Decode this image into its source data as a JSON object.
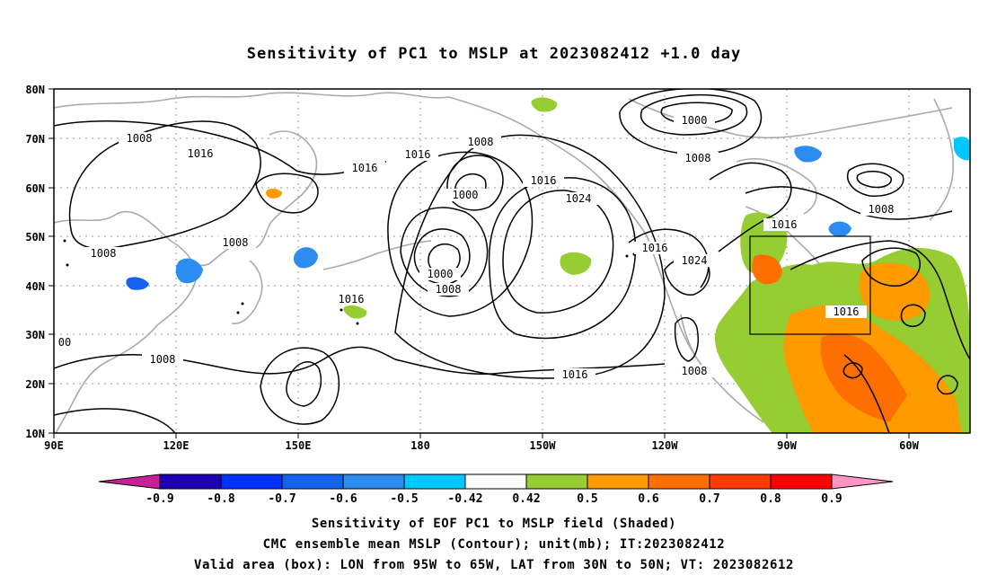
{
  "title": "Sensitivity of PC1 to MSLP at 2023082412 +1.0 day",
  "axes": {
    "lat_labels": [
      "80N",
      "70N",
      "60N",
      "50N",
      "40N",
      "30N",
      "20N",
      "10N"
    ],
    "lon_labels": [
      "90E",
      "120E",
      "150E",
      "180",
      "150W",
      "120W",
      "90W",
      "60W"
    ]
  },
  "colorbar": {
    "ticks": [
      "-0.9",
      "-0.8",
      "-0.7",
      "-0.6",
      "-0.5",
      "-0.42",
      "0.42",
      "0.5",
      "0.6",
      "0.7",
      "0.8",
      "0.9"
    ],
    "colors": [
      "#c81e96",
      "#1e00b4",
      "#0032ff",
      "#1464f0",
      "#2d8cf0",
      "#00c8ff",
      "#ffffff",
      "#96cd32",
      "#ff9a00",
      "#ff6e00",
      "#ff3c00",
      "#ff0000",
      "#ff96c8"
    ]
  },
  "contour_labels": {
    "c1": "1008",
    "c2": "1016",
    "c3": "1016",
    "c4": "1008",
    "c5": "1000",
    "c6": "1000",
    "c7": "1008",
    "c8": "1016",
    "c9": "1024",
    "c10": "1016",
    "c11": "1024",
    "c12": "1008",
    "c13": "1016",
    "c14": "1000",
    "c15": "1008",
    "c16": "1016",
    "c17": "1008",
    "c18": "1008",
    "c19": "1016",
    "c20": "1016",
    "c21": "1008",
    "c22": "1016",
    "c23": "1008",
    "c24": "00"
  },
  "valid_box": {
    "lon_from": "95W",
    "lon_to": "65W",
    "lat_from": "30N",
    "lat_to": "50N"
  },
  "captions": {
    "line1": "Sensitivity of EOF PC1 to MSLP field (Shaded)",
    "line2": "CMC ensemble mean MSLP (Contour); unit(mb); IT:2023082412",
    "line3": "Valid area (box): LON from 95W to 65W, LAT from 30N to 50N; VT: 2023082612"
  }
}
